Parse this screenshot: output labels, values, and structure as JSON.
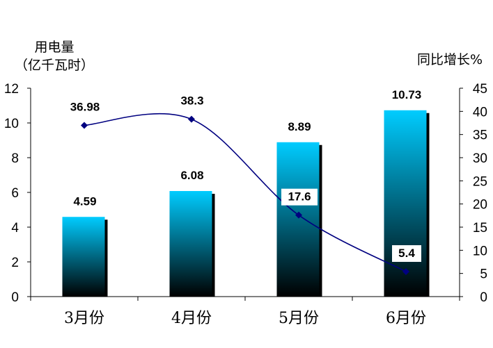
{
  "chart_data": {
    "type": "bar",
    "categories": [
      "3月份",
      "4月份",
      "5月份",
      "6月份"
    ],
    "series": [
      {
        "name": "",
        "kind": "bar",
        "axis": "left",
        "values": [
          4.59,
          6.08,
          8.89,
          10.73
        ],
        "labels": [
          "4.59",
          "6.08",
          "8.89",
          "10.73"
        ]
      },
      {
        "name": "",
        "kind": "line",
        "axis": "right",
        "values": [
          36.98,
          38.3,
          17.6,
          5.4
        ],
        "labels": [
          "36.98",
          "38.3",
          "17.6",
          "5.4"
        ]
      }
    ],
    "ylabel_line1": "用电量",
    "ylabel_line2": "（亿千瓦时）",
    "y2label": "同比增长%",
    "ylim": [
      0,
      12
    ],
    "yticks": [
      "0",
      "2",
      "4",
      "6",
      "8",
      "10",
      "12"
    ],
    "y2lim": [
      0,
      45
    ],
    "y2ticks": [
      "0",
      "5",
      "10",
      "15",
      "20",
      "25",
      "30",
      "35",
      "40",
      "45"
    ],
    "grid": false,
    "legend": "none",
    "colors": {
      "bar_top": "#00ccff",
      "bar_bottom": "#000000",
      "bar_shadow": "#000000",
      "line": "#000080",
      "axis": "#000000"
    }
  }
}
